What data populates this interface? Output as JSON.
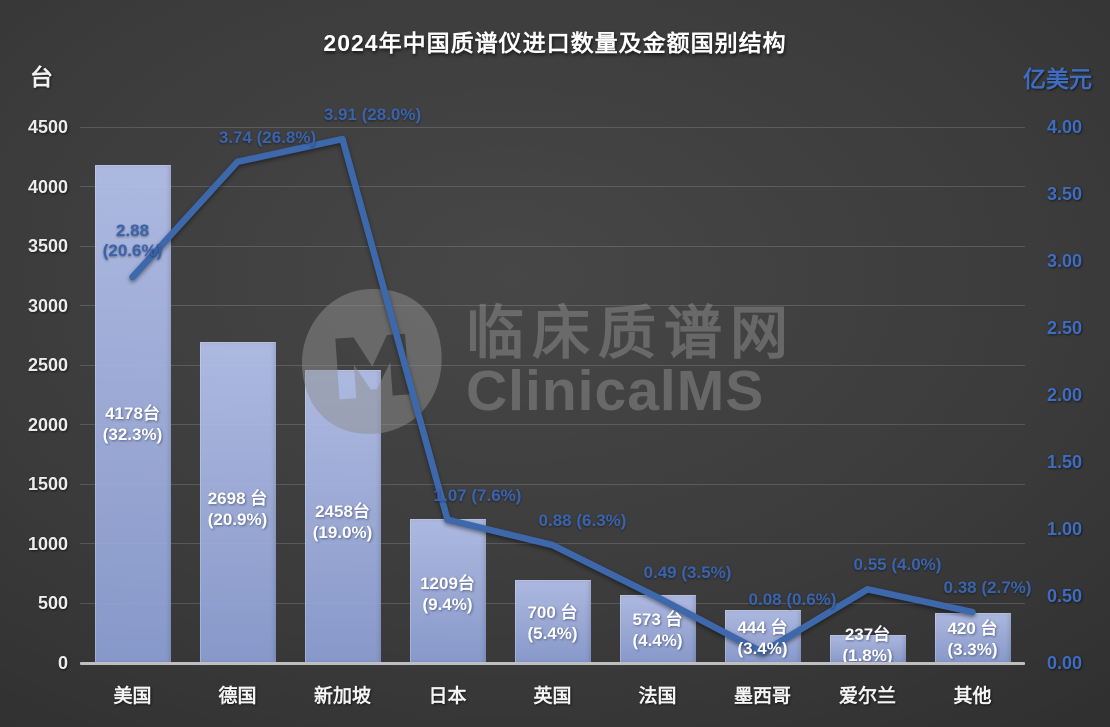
{
  "watermark": {
    "logo_letter": "M",
    "name_cn": "临床质谱网",
    "name_en": "ClinicalMS"
  },
  "colors": {
    "bar_fill": "#a9b8e6",
    "line_stroke": "#3e68ac",
    "line_label_blue": "#3a63ae",
    "right_axis_blue": "#3e6cc0",
    "text_white": "#f2f2f2",
    "background_dark": "#3b3b3b"
  },
  "chart_data": {
    "type": "bar+line",
    "title": "2024年中国质谱仪进口数量及金额国别结构",
    "categories": [
      "美国",
      "德国",
      "新加坡",
      "日本",
      "英国",
      "法国",
      "墨西哥",
      "爱尔兰",
      "其他"
    ],
    "left_axis": {
      "label": "台",
      "min": 0,
      "max": 4500,
      "step": 500,
      "tick_labels": [
        "4500",
        "4000",
        "3500",
        "3000",
        "2500",
        "2000",
        "1500",
        "1000",
        "500",
        "0"
      ]
    },
    "right_axis": {
      "label": "亿美元",
      "min": 0,
      "max": 4.0,
      "step": 0.5,
      "tick_labels": [
        "4.00",
        "3.50",
        "3.00",
        "2.50",
        "2.00",
        "1.50",
        "1.00",
        "0.50",
        "0.00"
      ]
    },
    "grid": true,
    "legend": false,
    "series": [
      {
        "kind": "bar",
        "axis": "left",
        "values": [
          4178,
          2698,
          2458,
          1209,
          700,
          573,
          444,
          237,
          420
        ],
        "value_labels": [
          "4178台",
          "2698 台",
          "2458台",
          "1209台",
          "700 台",
          "573 台",
          "444 台",
          "237台",
          "420 台"
        ],
        "pct_labels": [
          "(32.3%)",
          "(20.9%)",
          "(19.0%)",
          "(9.4%)",
          "(5.4%)",
          "(4.4%)",
          "(3.4%)",
          "(1.8%)",
          "(3.3%)"
        ]
      },
      {
        "kind": "line",
        "axis": "right",
        "values": [
          2.88,
          3.74,
          3.91,
          1.07,
          0.88,
          0.49,
          0.08,
          0.55,
          0.38
        ],
        "value_labels": [
          "2.88",
          "3.74",
          "3.91",
          "1.07",
          "0.88",
          "0.49",
          "0.08",
          "0.55",
          "0.38"
        ],
        "pct_labels": [
          "(20.6%)",
          "(26.8%)",
          "(28.0%)",
          "(7.6%)",
          "(6.3%)",
          "(3.5%)",
          "(0.6%)",
          "(4.0%)",
          "(2.7%)"
        ]
      }
    ]
  }
}
